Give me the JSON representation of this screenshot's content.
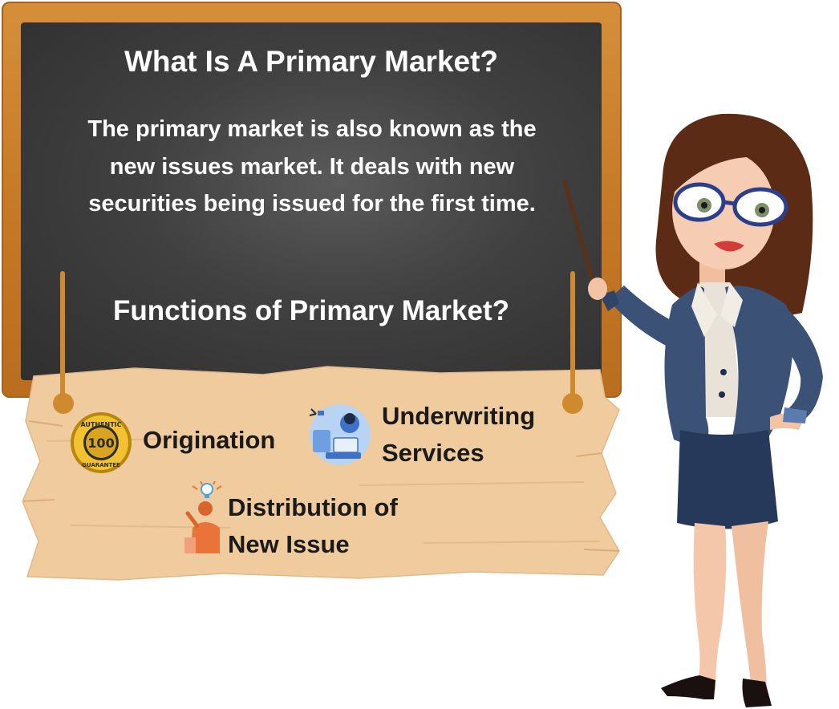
{
  "board": {
    "title": "What Is A Primary Market?",
    "description": "The primary market is also known as the new issues market. It deals with new securities being issued for the first time.",
    "subtitle": "Functions of Primary Market?"
  },
  "functions": {
    "origination": {
      "label": "Origination",
      "icon": "guarantee-seal-icon"
    },
    "underwriting": {
      "line1": "Underwriting",
      "line2": "Services",
      "icon": "study-desk-icon"
    },
    "distribution": {
      "line1": "Distribution of",
      "line2": "New Issue",
      "icon": "idea-person-icon"
    }
  },
  "badge": {
    "top": "AUTHENTIC",
    "number": "100",
    "bottom": "GUARANTEE"
  },
  "colors": {
    "frame": "#c67a27",
    "chalkboard": "#404040",
    "sign": "#efcb9e",
    "suit": "#3b5276",
    "text_dark": "#1a1a1a"
  }
}
